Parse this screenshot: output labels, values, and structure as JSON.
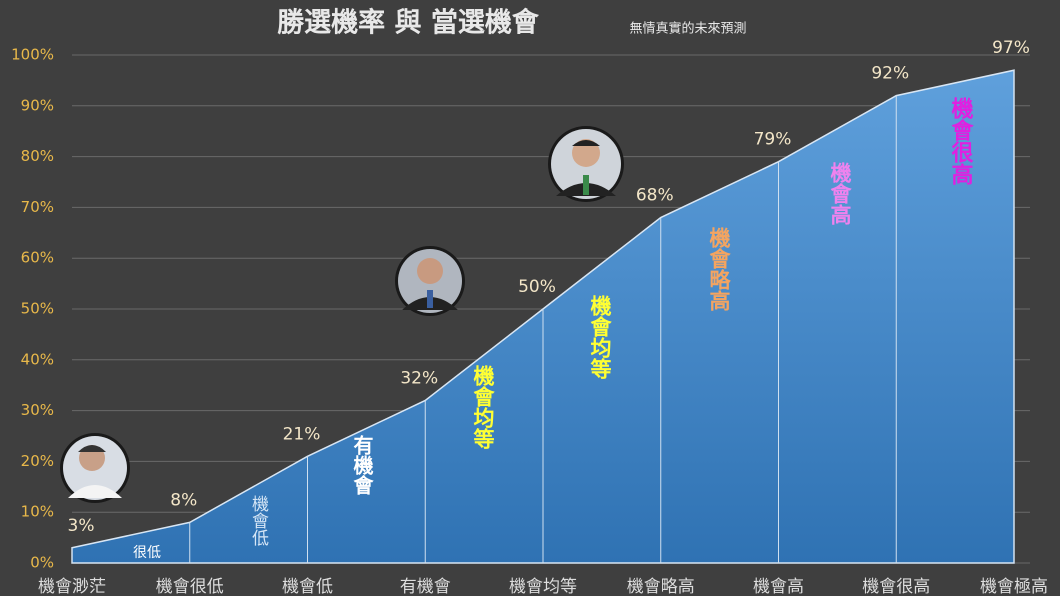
{
  "chart_data": {
    "type": "area",
    "title": "勝選機率 與 當選機會",
    "subtitle": "無情真實的未來預測",
    "categories": [
      "機會渺茫",
      "機會很低",
      "機會低",
      "有機會",
      "機會均等",
      "機會略高",
      "機會高",
      "機會很高",
      "機會極高"
    ],
    "values": [
      3,
      8,
      21,
      32,
      50,
      68,
      79,
      92,
      97
    ],
    "value_labels": [
      "3%",
      "8%",
      "21%",
      "32%",
      "50%",
      "68%",
      "79%",
      "92%",
      "97%"
    ],
    "color": "#5b9bd5",
    "ylim": [
      0,
      100
    ],
    "yticks": [
      {
        "value": 0,
        "label": "0%"
      },
      {
        "value": 10,
        "label": "10%"
      },
      {
        "value": 20,
        "label": "20%"
      },
      {
        "value": 30,
        "label": "30%"
      },
      {
        "value": 40,
        "label": "40%"
      },
      {
        "value": 50,
        "label": "50%"
      },
      {
        "value": 60,
        "label": "60%"
      },
      {
        "value": 70,
        "label": "70%"
      },
      {
        "value": 80,
        "label": "80%"
      },
      {
        "value": 90,
        "label": "90%"
      },
      {
        "value": 100,
        "label": "100%"
      }
    ],
    "grid": true,
    "annotations": [
      {
        "text": "很低",
        "color": "#ffffff"
      },
      {
        "text": "機會低",
        "color": "#d6e6f6"
      },
      {
        "text": "有機會",
        "color": "#ffffff"
      },
      {
        "text": "機會均等",
        "color": "#ffff33"
      },
      {
        "text": "機會均等",
        "color": "#ffff33"
      },
      {
        "text": "機會略高",
        "color": "#f4a460"
      },
      {
        "text": "機會高",
        "color": "#ee82ee"
      },
      {
        "text": "機會很高",
        "color": "#e020e0"
      }
    ]
  }
}
